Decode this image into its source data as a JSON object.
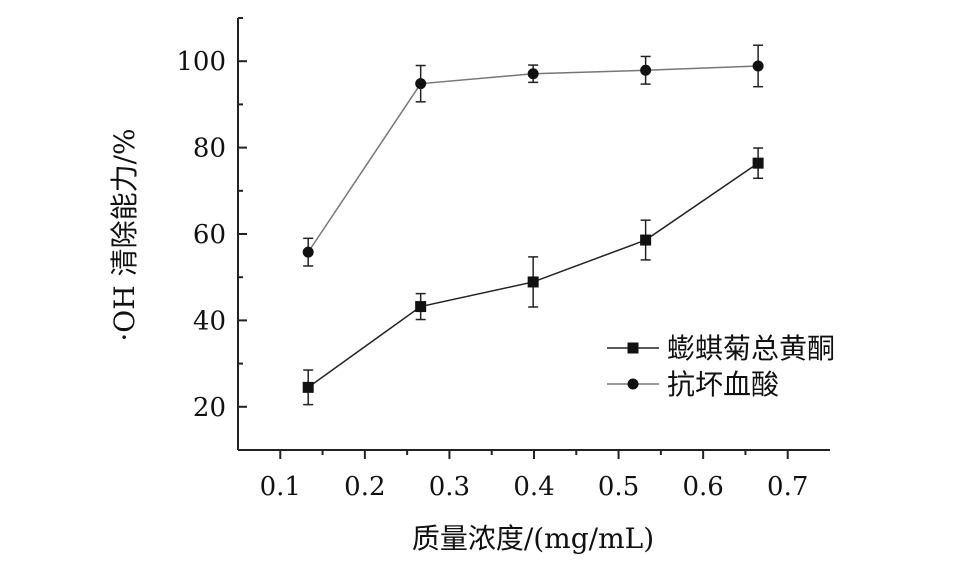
{
  "chart_data": {
    "type": "line",
    "title": "",
    "xlabel": "质量浓度/(mg/mL)",
    "ylabel": "·OH 清除能力/%",
    "xlim": [
      0.05,
      0.75
    ],
    "ylim": [
      10,
      110
    ],
    "xticks": [
      0.1,
      0.2,
      0.3,
      0.4,
      0.5,
      0.6,
      0.7
    ],
    "xtick_labels": [
      "0.1",
      "0.2",
      "0.3",
      "0.4",
      "0.5",
      "0.6",
      "0.7"
    ],
    "yticks": [
      20,
      40,
      60,
      80,
      100
    ],
    "ytick_labels": [
      "20",
      "40",
      "60",
      "80",
      "100"
    ],
    "legend_position": "lower-right",
    "grid": false,
    "series": [
      {
        "name": "蟛蜞菊总黄酮",
        "marker": "square",
        "color": "#222222",
        "x": [
          0.133,
          0.266,
          0.399,
          0.532,
          0.665
        ],
        "y": [
          24.5,
          43.2,
          48.9,
          58.6,
          76.4
        ],
        "error": [
          4.0,
          3.0,
          5.8,
          4.6,
          3.5
        ]
      },
      {
        "name": "抗坏血酸",
        "marker": "circle",
        "color": "#777777",
        "x": [
          0.133,
          0.266,
          0.399,
          0.532,
          0.665
        ],
        "y": [
          55.8,
          94.8,
          97.1,
          97.9,
          98.9
        ],
        "error": [
          3.2,
          4.2,
          2.0,
          3.2,
          4.8
        ]
      }
    ]
  }
}
